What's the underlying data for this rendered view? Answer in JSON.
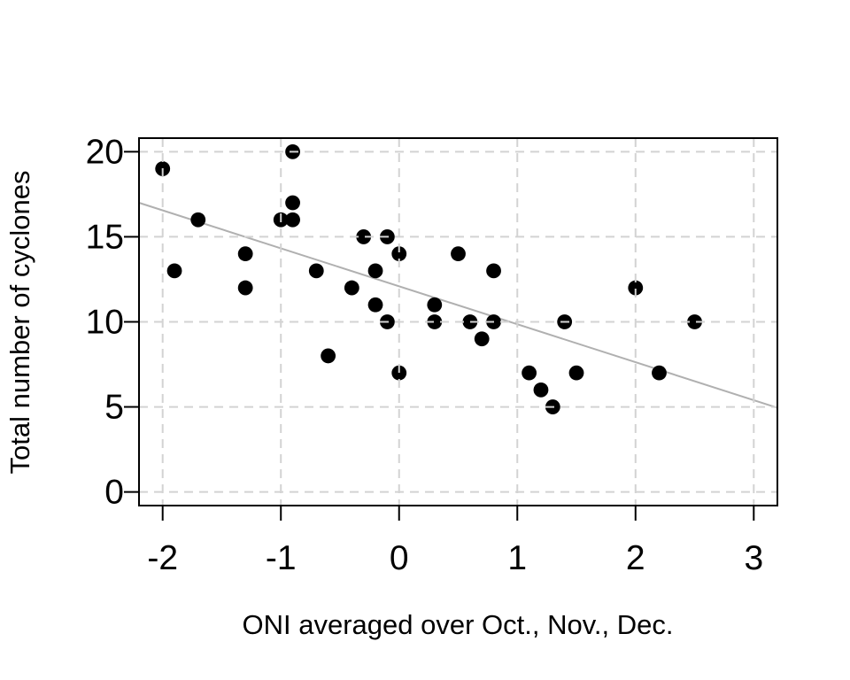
{
  "figure": {
    "background_color": "#ffffff",
    "plot_border_color": "#000000",
    "text_color": "#000000"
  },
  "chart_data": {
    "type": "scatter",
    "title": "",
    "xlabel": "ONI averaged over Oct., Nov., Dec.",
    "ylabel": "Total number of cyclones",
    "xlim": [
      -2.2,
      3.2
    ],
    "ylim": [
      -0.8,
      20.8
    ],
    "x_ticks": [
      -2,
      -1,
      0,
      1,
      2,
      3
    ],
    "x_tick_labels": [
      "-2",
      "-1",
      "0",
      "1",
      "2",
      "3"
    ],
    "y_ticks": [
      0,
      5,
      10,
      15,
      20
    ],
    "y_tick_labels": [
      "0",
      "5",
      "10",
      "15",
      "20"
    ],
    "grid": true,
    "grid_color": "#d3d3d3",
    "grid_dash": "10 7",
    "grid_on_top_of_points": true,
    "legend": "none",
    "point_color": "#000000",
    "point_radius": 8.4,
    "points": [
      [
        -2.0,
        19
      ],
      [
        -1.9,
        13
      ],
      [
        -1.7,
        16
      ],
      [
        -1.3,
        14
      ],
      [
        -1.3,
        12
      ],
      [
        -1.0,
        16
      ],
      [
        -0.9,
        20
      ],
      [
        -0.9,
        17
      ],
      [
        -0.9,
        16
      ],
      [
        -0.7,
        13
      ],
      [
        -0.6,
        8
      ],
      [
        -0.4,
        12
      ],
      [
        -0.3,
        15
      ],
      [
        -0.2,
        13
      ],
      [
        -0.2,
        11
      ],
      [
        -0.1,
        15
      ],
      [
        -0.1,
        10
      ],
      [
        0.0,
        14
      ],
      [
        0.0,
        7
      ],
      [
        0.3,
        11
      ],
      [
        0.3,
        10
      ],
      [
        0.5,
        14
      ],
      [
        0.6,
        10
      ],
      [
        0.7,
        9
      ],
      [
        0.8,
        13
      ],
      [
        0.8,
        10
      ],
      [
        1.1,
        7
      ],
      [
        1.2,
        6
      ],
      [
        1.3,
        5
      ],
      [
        1.4,
        10
      ],
      [
        1.5,
        7
      ],
      [
        2.0,
        12
      ],
      [
        2.2,
        7
      ],
      [
        2.5,
        10
      ]
    ],
    "regression_line": {
      "color": "#b0b0b0",
      "slope": -2.24,
      "intercept": 12.1,
      "x1": -2.2,
      "y1": 17.0,
      "x2": 3.2,
      "y2": 4.95
    }
  }
}
